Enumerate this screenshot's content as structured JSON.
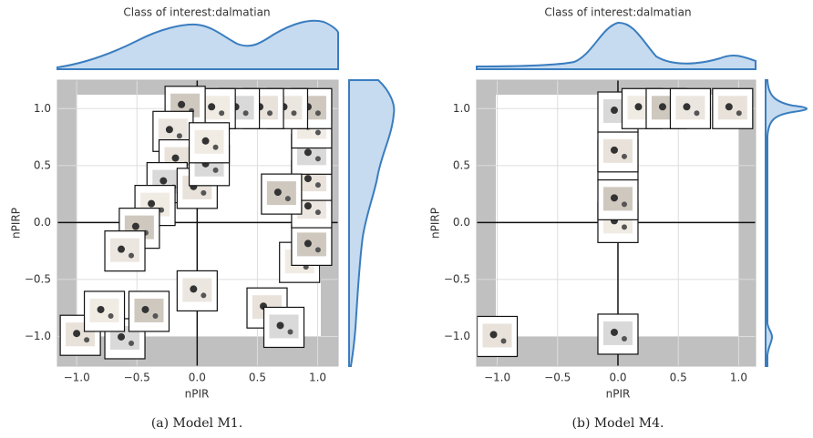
{
  "chart_data": [
    {
      "type": "scatter",
      "title": "Class of interest:dalmatian",
      "caption": "(a) Model M1.",
      "xlabel": "nPIR",
      "ylabel": "nPIRP",
      "x": [
        -0.97,
        -0.6,
        -0.77,
        -0.4,
        0.0,
        0.58,
        0.72,
        0.85,
        0.95,
        0.95,
        0.95,
        0.95,
        0.95,
        0.95,
        0.75,
        0.55,
        0.35,
        0.15,
        -0.1,
        -0.2,
        -0.15,
        -0.25,
        -0.35,
        -0.48,
        -0.6,
        0.0,
        0.1,
        0.1,
        0.7
      ],
      "y": [
        -0.99,
        -1.02,
        -0.78,
        -0.78,
        -0.6,
        -0.75,
        -0.92,
        -0.35,
        -0.2,
        0.13,
        0.37,
        0.6,
        0.83,
        1.0,
        1.0,
        1.0,
        1.0,
        1.0,
        1.02,
        0.8,
        0.55,
        0.35,
        0.15,
        -0.05,
        -0.25,
        0.3,
        0.5,
        0.7,
        0.25
      ],
      "xlim": [
        -1.16,
        1.17
      ],
      "ylim": [
        -1.26,
        1.25
      ],
      "xticks": [
        {
          "value": -1,
          "label": "−1.0"
        },
        {
          "value": -0.5,
          "label": "−0.5"
        },
        {
          "value": 0,
          "label": "0.0"
        },
        0.5,
        {
          "value": 1,
          "label": "1.0"
        }
      ],
      "yticks": [
        {
          "value": -1,
          "label": "−1.0"
        },
        {
          "value": -0.5,
          "label": "−0.5"
        },
        {
          "value": 0,
          "label": "0.0"
        },
        0.5,
        {
          "value": 1,
          "label": "1.0"
        }
      ],
      "grid": true
    },
    {
      "type": "scatter",
      "title": "Class of interest:dalmatian",
      "caption": "(b) Model M4.",
      "xlabel": "nPIR",
      "ylabel": "nPIRP",
      "x": [
        -1.0,
        0.0,
        0.0,
        0.0,
        0.0,
        0.0,
        0.0,
        0.2,
        0.4,
        0.6,
        0.95
      ],
      "y": [
        -1.0,
        -0.98,
        0.0,
        0.2,
        0.55,
        0.62,
        0.97,
        1.0,
        1.0,
        1.0,
        1.0
      ],
      "xlim": [
        -1.17,
        1.14
      ],
      "ylim": [
        -1.26,
        1.25
      ],
      "xticks": [
        {
          "value": -1,
          "label": "−1.0"
        },
        {
          "value": -0.5,
          "label": "−0.5"
        },
        {
          "value": 0,
          "label": "0.0"
        },
        0.5,
        {
          "value": 1,
          "label": "1.0"
        }
      ],
      "yticks": [
        {
          "value": -1,
          "label": "−1.0"
        },
        {
          "value": -0.5,
          "label": "−0.5"
        },
        {
          "value": 0,
          "label": "0.0"
        },
        0.5,
        {
          "value": 1,
          "label": "1.0"
        }
      ],
      "grid": true
    }
  ]
}
